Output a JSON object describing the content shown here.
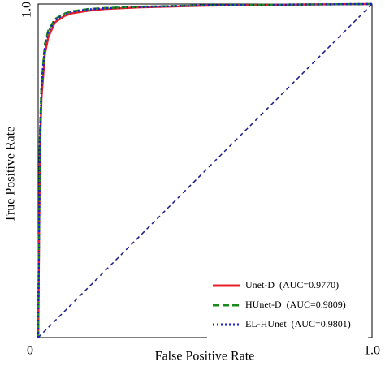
{
  "chart_data": {
    "type": "line",
    "xlabel": "False Positive Rate",
    "ylabel": "True Positive Rate",
    "x": [
      0,
      0.005,
      0.01,
      0.02,
      0.03,
      0.05,
      0.08,
      0.1,
      0.15,
      0.2,
      0.3,
      0.5,
      0.7,
      1.0
    ],
    "series": [
      {
        "name": "Unet-D  (AUC=0.9770)",
        "color": "#e8202a",
        "style": "solid",
        "values": [
          0,
          0.55,
          0.72,
          0.85,
          0.9,
          0.945,
          0.965,
          0.972,
          0.98,
          0.985,
          0.99,
          0.995,
          0.998,
          1.0
        ]
      },
      {
        "name": "HUnet-D  (AUC=0.9809)",
        "color": "#1a8a1a",
        "style": "dashed",
        "values": [
          0,
          0.6,
          0.76,
          0.88,
          0.92,
          0.955,
          0.972,
          0.978,
          0.985,
          0.988,
          0.992,
          0.996,
          0.998,
          1.0
        ]
      },
      {
        "name": "EL-HUnet  (AUC=0.9801)",
        "color": "#1c1cd0",
        "style": "dotted",
        "values": [
          0,
          0.58,
          0.75,
          0.87,
          0.915,
          0.952,
          0.97,
          0.976,
          0.984,
          0.987,
          0.991,
          0.996,
          0.998,
          1.0
        ]
      }
    ],
    "xlim": [
      0,
      1
    ],
    "ylim": [
      0,
      1
    ],
    "xticks": [
      0,
      {
        "value": 1,
        "label": "1.0"
      }
    ],
    "yticks": [
      {
        "value": 1,
        "label": "1.0"
      }
    ],
    "legend": "lower right"
  }
}
